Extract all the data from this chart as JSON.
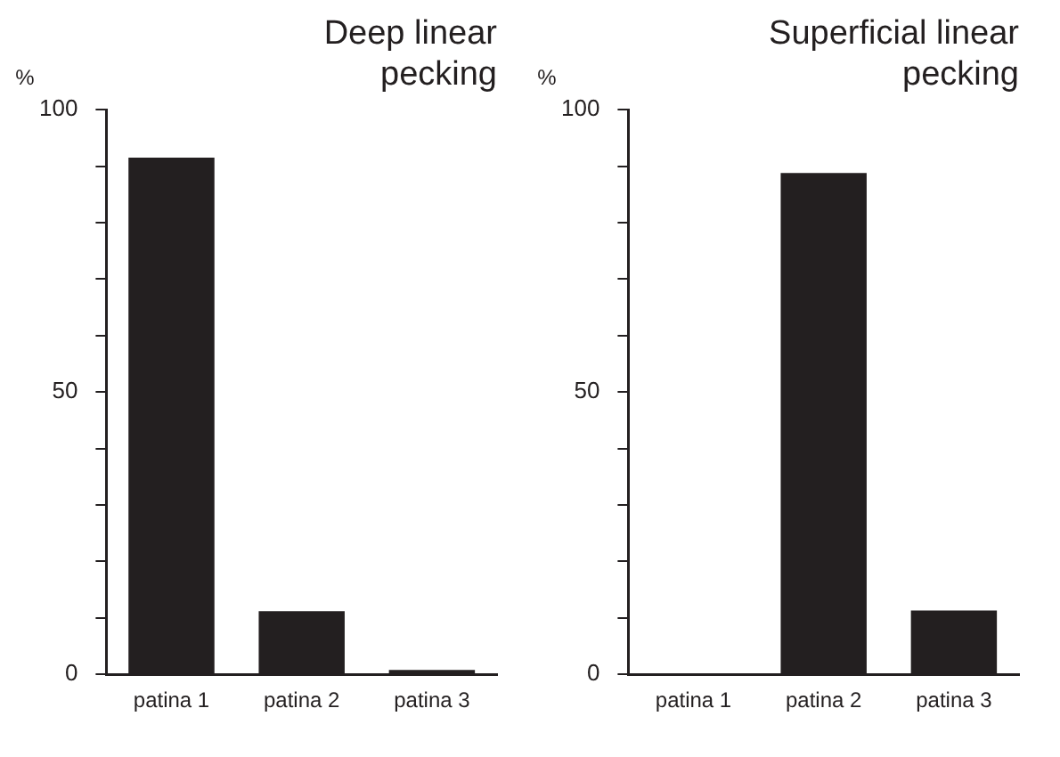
{
  "chart_data": [
    {
      "type": "bar",
      "title": "Deep linear pecking",
      "ylabel": "%",
      "categories": [
        "patina 1",
        "patina 2",
        "patina 3"
      ],
      "values": [
        91.5,
        11.2,
        0.8
      ],
      "color": "#231f20",
      "ylim": [
        0,
        100
      ],
      "yticks": [
        0,
        {
          "value": 10,
          "label": null
        },
        {
          "value": 20,
          "label": null
        },
        {
          "value": 30,
          "label": null
        },
        {
          "value": 40,
          "label": null
        },
        50,
        {
          "value": 60,
          "label": null
        },
        {
          "value": 70,
          "label": null
        },
        {
          "value": 80,
          "label": null
        },
        {
          "value": 90,
          "label": null
        },
        100
      ],
      "grid": false
    },
    {
      "type": "bar",
      "title": "Superficial linear pecking",
      "ylabel": "%",
      "categories": [
        "patina 1",
        "patina 2",
        "patina 3"
      ],
      "values": [
        0,
        88.8,
        11.3
      ],
      "color": "#231f20",
      "ylim": [
        0,
        100
      ],
      "yticks": [
        0,
        {
          "value": 10,
          "label": null
        },
        {
          "value": 20,
          "label": null
        },
        {
          "value": 30,
          "label": null
        },
        {
          "value": 40,
          "label": null
        },
        50,
        {
          "value": 60,
          "label": null
        },
        {
          "value": 70,
          "label": null
        },
        {
          "value": 80,
          "label": null
        },
        {
          "value": 90,
          "label": null
        },
        100
      ],
      "grid": false
    }
  ]
}
